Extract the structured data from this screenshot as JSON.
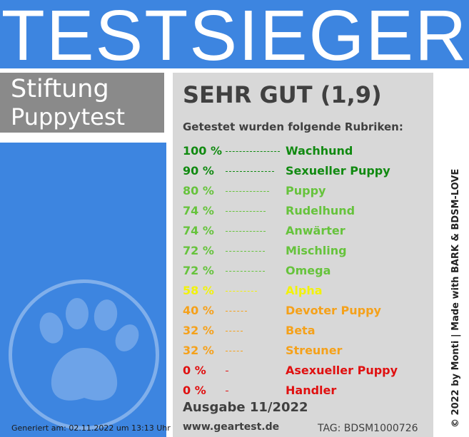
{
  "banner": {
    "title": "TESTSIEGER"
  },
  "org": {
    "line1": "Stiftung",
    "line2": "Puppytest"
  },
  "rating": {
    "text": "SEHR GUT (1,9)"
  },
  "subhead": "Getestet wurden folgende Rubriken:",
  "rows": [
    {
      "pct": "100 %",
      "category": "Wachhund",
      "value": 100,
      "color": "#118a11"
    },
    {
      "pct": "90 %",
      "category": "Sexueller Puppy",
      "value": 90,
      "color": "#118a11"
    },
    {
      "pct": "80 %",
      "category": "Puppy",
      "value": 80,
      "color": "#66c33c"
    },
    {
      "pct": "74 %",
      "category": "Rudelhund",
      "value": 74,
      "color": "#66c33c"
    },
    {
      "pct": "74 %",
      "category": "Anwärter",
      "value": 74,
      "color": "#66c33c"
    },
    {
      "pct": "72 %",
      "category": "Mischling",
      "value": 72,
      "color": "#66c33c"
    },
    {
      "pct": "72 %",
      "category": "Omega",
      "value": 72,
      "color": "#66c33c"
    },
    {
      "pct": "58 %",
      "category": "Alpha",
      "value": 58,
      "color": "#f2f20a"
    },
    {
      "pct": "40 %",
      "category": "Devoter Puppy",
      "value": 40,
      "color": "#f5a11a"
    },
    {
      "pct": "32 %",
      "category": "Beta",
      "value": 32,
      "color": "#f5a11a"
    },
    {
      "pct": "32 %",
      "category": "Streuner",
      "value": 32,
      "color": "#f5a11a"
    },
    {
      "pct": "0 %",
      "category": "Asexueller Puppy",
      "value": 0,
      "color": "#e01010"
    },
    {
      "pct": "0 %",
      "category": "Handler",
      "value": 0,
      "color": "#e01010"
    }
  ],
  "issue": "Ausgabe 11/2022",
  "url": "www.geartest.de",
  "tag": "TAG: BDSM1000726",
  "generated": "Generiert am: 02.11.2022 um 13:13 Uhr",
  "credit": "© 2022 by Monti | Made with BARK & BDSM-LOVE",
  "icons": {
    "paw": "paw-icon"
  },
  "colors": {
    "blue": "#3d85e0",
    "gray_box": "#8a8a8a",
    "panel": "#d8d8d8"
  }
}
